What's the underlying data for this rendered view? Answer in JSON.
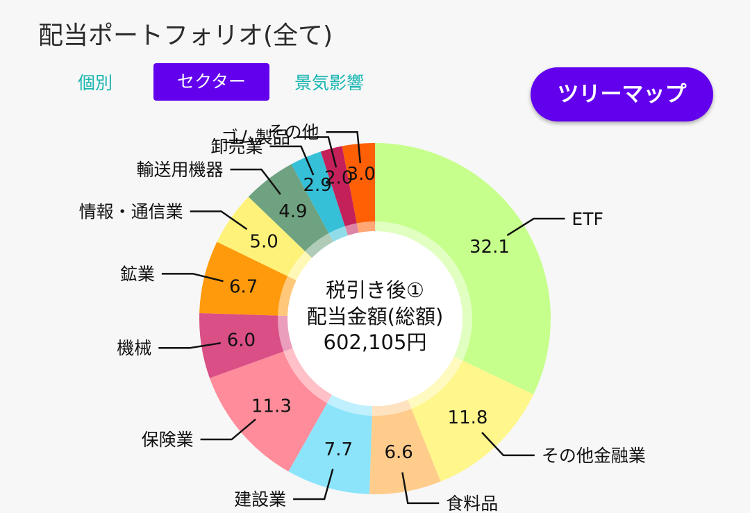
{
  "header": {
    "title": "配当ポートフォリオ(全て)"
  },
  "tabs": [
    {
      "label": "個別",
      "active": false
    },
    {
      "label": "セクター",
      "active": true
    },
    {
      "label": "景気影響",
      "active": false
    }
  ],
  "treemap_button": {
    "label": "ツリーマップ"
  },
  "colors": {
    "accent": "#6200ee",
    "tab_text": "#19b6b1"
  },
  "chart_data": {
    "type": "pie",
    "style": "donut",
    "center_text": [
      "税引き後①",
      "配当金額(総額)",
      "602,105円"
    ],
    "unit": "%",
    "slices": [
      {
        "label": "ETF",
        "value": 32.1,
        "value_label": "32.1",
        "color": "#c6ff8c"
      },
      {
        "label": "その他金融業",
        "value": 11.8,
        "value_label": "11.8",
        "color": "#fff68c"
      },
      {
        "label": "食料品",
        "value": 6.6,
        "value_label": "6.6",
        "color": "#ffcc8c"
      },
      {
        "label": "建設業",
        "value": 7.7,
        "value_label": "7.7",
        "color": "#8ce4fb"
      },
      {
        "label": "保険業",
        "value": 11.3,
        "value_label": "11.3",
        "color": "#ff8c9a"
      },
      {
        "label": "機械",
        "value": 6.0,
        "value_label": "6.0",
        "color": "#d94f86"
      },
      {
        "label": "鉱業",
        "value": 6.7,
        "value_label": "6.7",
        "color": "#ff9a0d"
      },
      {
        "label": "情報・通信業",
        "value": 5.0,
        "value_label": "5.0",
        "color": "#fff27a"
      },
      {
        "label": "輸送用機器",
        "value": 4.9,
        "value_label": "4.9",
        "color": "#6fa280"
      },
      {
        "label": "卸売業",
        "value": 2.9,
        "value_label": "2.9",
        "color": "#36c0d8"
      },
      {
        "label": "ゴム製品",
        "value": 2.0,
        "value_label": "2.0",
        "color": "#c4205a"
      },
      {
        "label": "その他",
        "value": 3.0,
        "value_label": "3.0",
        "color": "#ff5f05"
      }
    ]
  }
}
